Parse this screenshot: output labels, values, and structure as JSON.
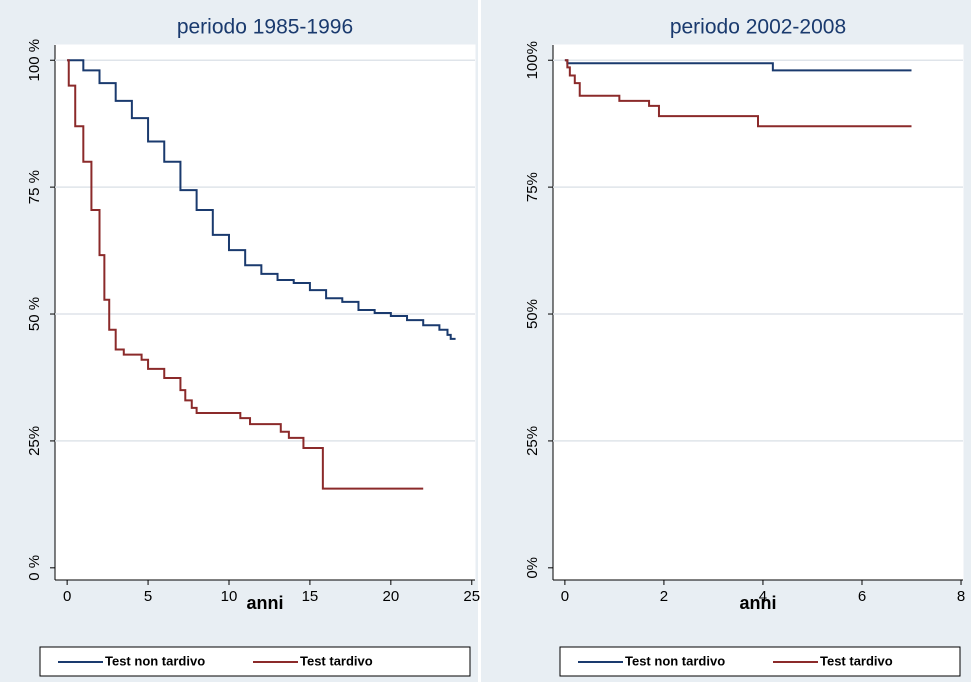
{
  "chart_data": [
    {
      "type": "line",
      "step": true,
      "title": "periodo 1985-1996",
      "xlabel": "anni",
      "xlim": [
        -0.75,
        25.2
      ],
      "ylim": [
        -2.4,
        103
      ],
      "xticks": [
        0,
        5,
        10,
        15,
        20,
        25
      ],
      "yticks": [
        {
          "value": 0,
          "label": "0 %"
        },
        {
          "value": 25,
          "label": "25%"
        },
        {
          "value": 50,
          "label": "50 %"
        },
        {
          "value": 75,
          "label": "75 %"
        },
        {
          "value": 100,
          "label": "100 %"
        }
      ],
      "grid": true,
      "legend": "bottom",
      "series": [
        {
          "name": "Test non tardivo",
          "color": "#1a3a6e",
          "x": [
            0,
            1,
            2,
            3,
            4,
            5,
            6,
            7,
            8,
            9,
            10,
            11,
            12,
            13,
            14,
            15,
            16,
            17,
            18,
            19,
            20,
            21,
            22,
            23,
            23.5,
            23.7,
            24
          ],
          "values": [
            100,
            98,
            95.5,
            92,
            88.6,
            84,
            80,
            74.4,
            70.5,
            65.6,
            62.6,
            59.6,
            57.9,
            56.7,
            56.1,
            54.7,
            53.1,
            52.4,
            50.8,
            50.2,
            49.6,
            48.8,
            47.8,
            46.9,
            45.9,
            45.1,
            45.1
          ]
        },
        {
          "name": "Test tardivo",
          "color": "#8b2a2a",
          "x": [
            0,
            0.1,
            0.5,
            1,
            1.5,
            2,
            2.3,
            2.6,
            3,
            3.5,
            4.6,
            5,
            6,
            7,
            7.3,
            7.7,
            8,
            10.7,
            11.3,
            13.2,
            13.7,
            14.6,
            15.8,
            22
          ],
          "values": [
            100,
            95,
            87,
            80,
            70.5,
            61.6,
            52.8,
            46.9,
            43,
            42,
            41,
            39.2,
            37.4,
            35,
            33,
            31.5,
            30.5,
            29.5,
            28.3,
            26.8,
            25.6,
            23.6,
            15.6,
            15.6
          ]
        }
      ]
    },
    {
      "type": "line",
      "step": true,
      "title": "periodo 2002-2008",
      "xlabel": "anni",
      "xlim": [
        -0.24,
        8.04
      ],
      "ylim": [
        -2.4,
        103
      ],
      "xticks": [
        0,
        2,
        4,
        6,
        8
      ],
      "yticks": [
        {
          "value": 0,
          "label": "0%"
        },
        {
          "value": 25,
          "label": "25%"
        },
        {
          "value": 50,
          "label": "50%"
        },
        {
          "value": 75,
          "label": "75%"
        },
        {
          "value": 100,
          "label": "100%"
        }
      ],
      "grid": true,
      "legend": "bottom",
      "series": [
        {
          "name": "Test non tardivo",
          "color": "#1a3a6e",
          "x": [
            0,
            0.05,
            4.2,
            7
          ],
          "values": [
            100,
            99.4,
            98,
            98
          ]
        },
        {
          "name": "Test tardivo",
          "color": "#8b2a2a",
          "x": [
            0,
            0.05,
            0.1,
            0.2,
            0.3,
            1.1,
            1.7,
            1.9,
            3.9,
            7
          ],
          "values": [
            100,
            98.6,
            97,
            95.5,
            93,
            92,
            91,
            89,
            87,
            87
          ]
        }
      ]
    }
  ]
}
